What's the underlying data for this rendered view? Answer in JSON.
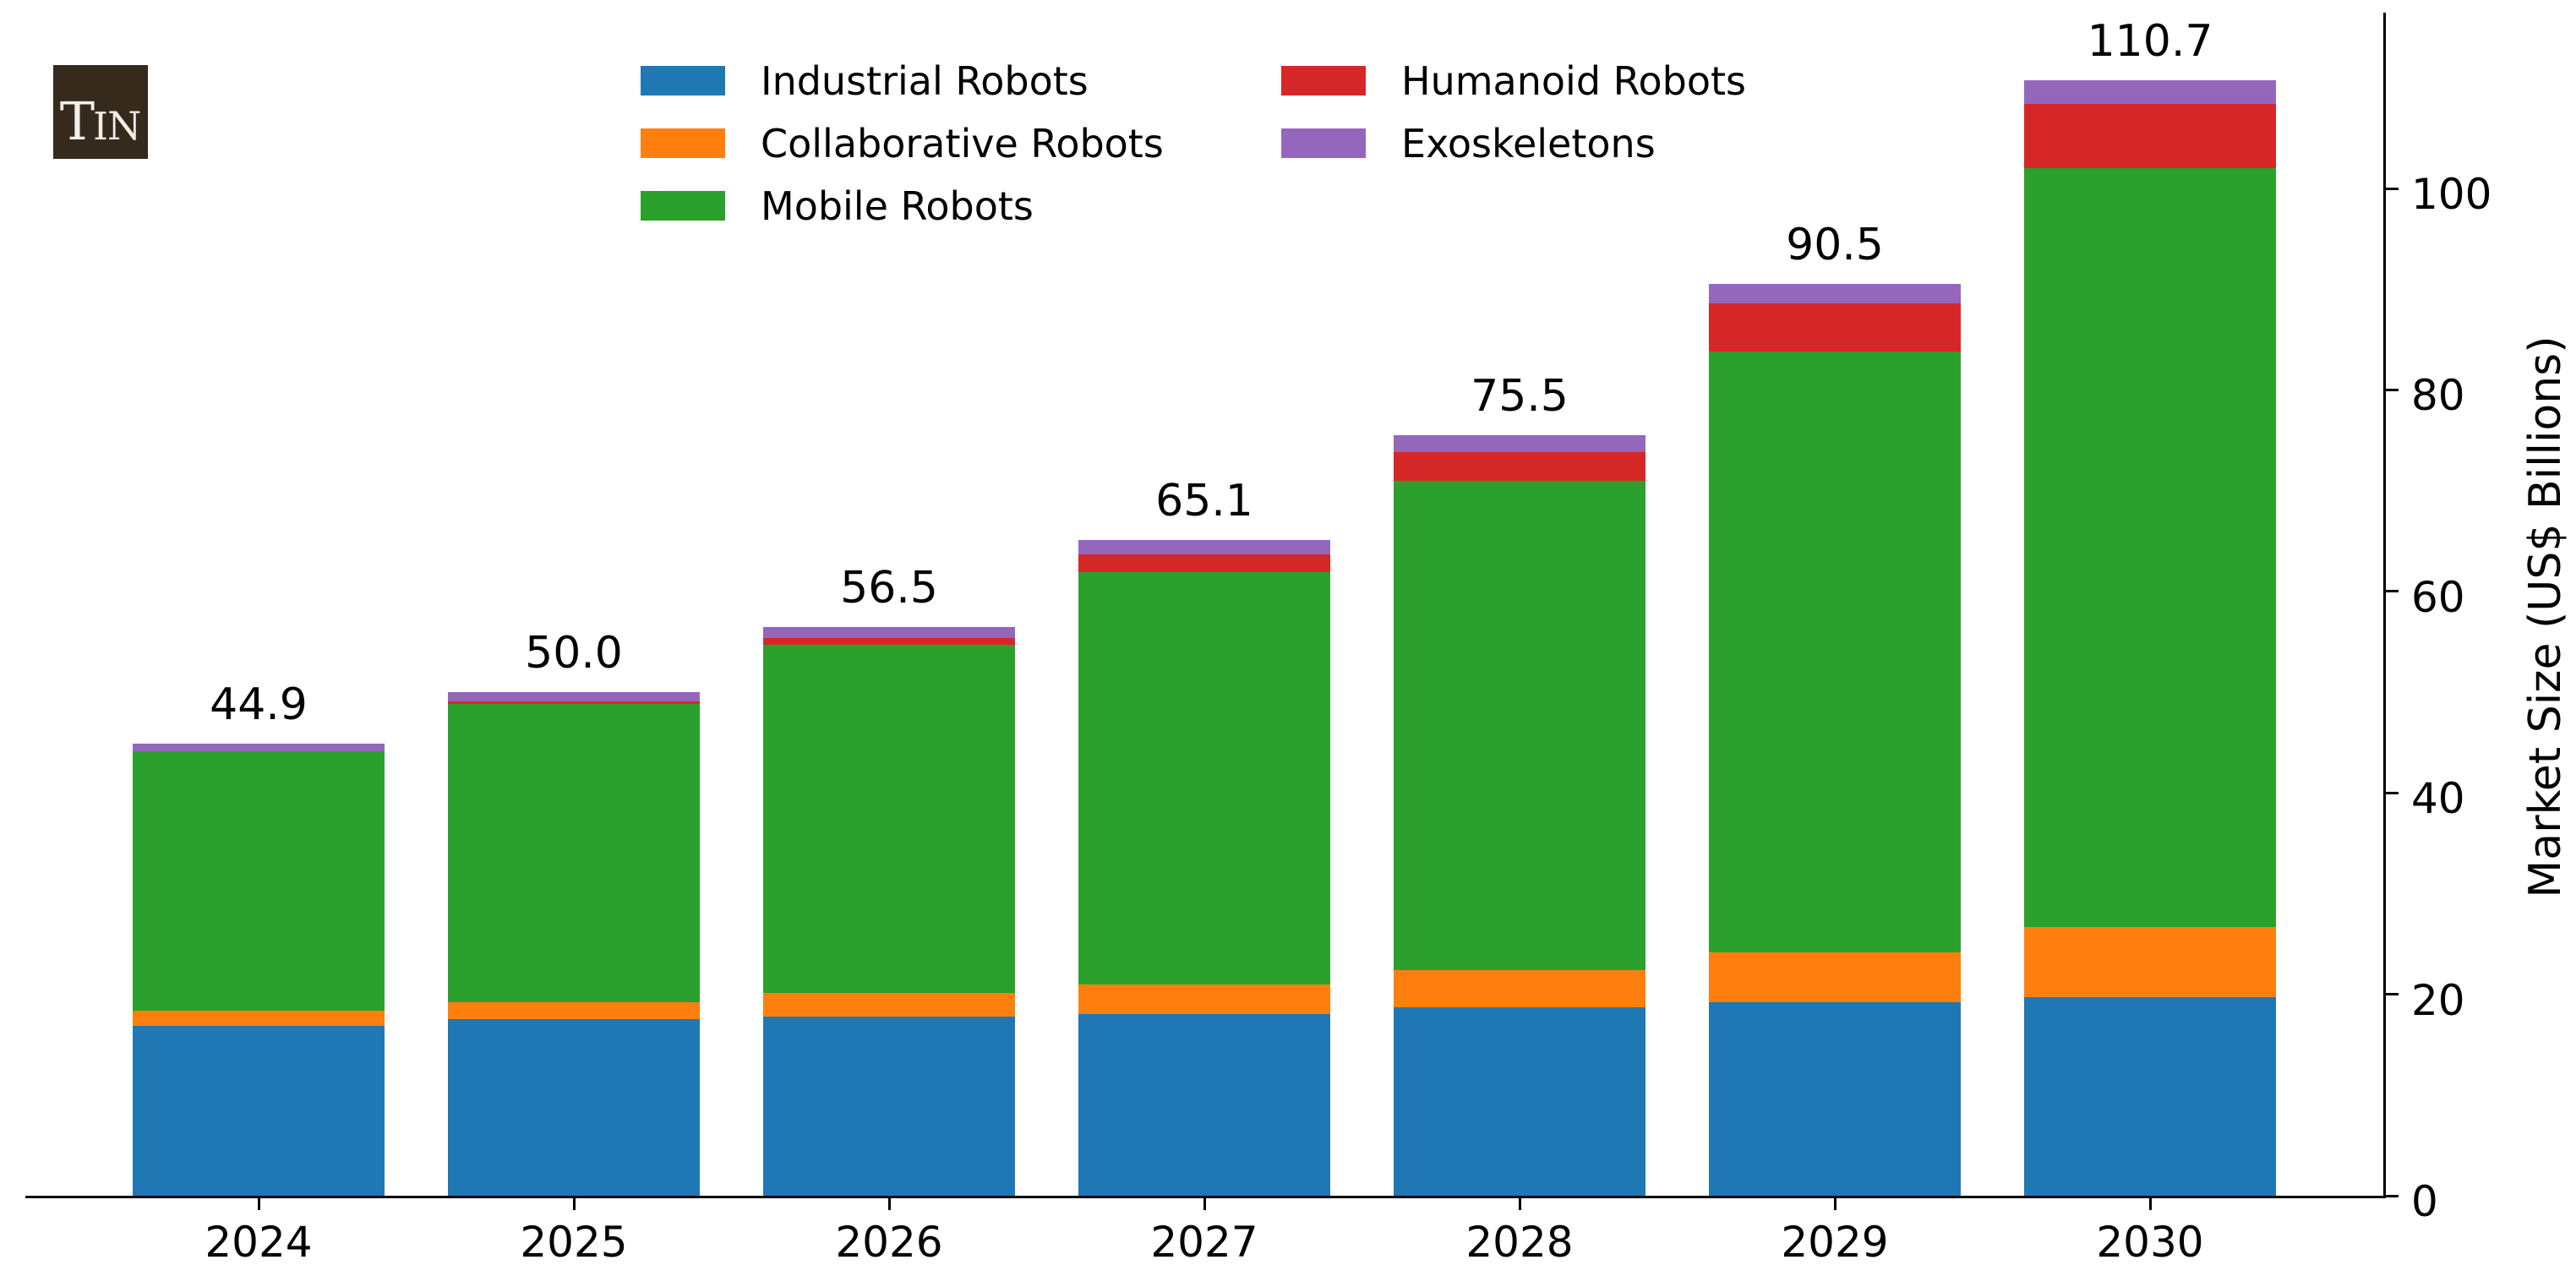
{
  "logo": {
    "letters": [
      "T",
      "I",
      "N"
    ]
  },
  "chart_data": {
    "type": "bar",
    "stacked": true,
    "categories": [
      "2024",
      "2025",
      "2026",
      "2027",
      "2028",
      "2029",
      "2030"
    ],
    "series": [
      {
        "name": "Industrial Robots",
        "color": "#1f77b4",
        "values": [
          16.9,
          17.5,
          17.8,
          18.0,
          18.7,
          19.2,
          19.7
        ]
      },
      {
        "name": "Collaborative Robots",
        "color": "#ff7f0e",
        "values": [
          1.5,
          1.7,
          2.3,
          3.0,
          3.7,
          5.0,
          7.0
        ]
      },
      {
        "name": "Mobile Robots",
        "color": "#2ca02c",
        "values": [
          25.7,
          29.6,
          34.6,
          40.9,
          48.6,
          59.6,
          75.3
        ]
      },
      {
        "name": "Humanoid Robots",
        "color": "#d62728",
        "values": [
          0.0,
          0.3,
          0.7,
          1.8,
          2.8,
          4.8,
          6.4
        ]
      },
      {
        "name": "Exoskeletons",
        "color": "#9467bd",
        "values": [
          0.8,
          0.9,
          1.1,
          1.4,
          1.7,
          1.9,
          2.3
        ]
      }
    ],
    "totals": [
      44.9,
      50.0,
      56.5,
      65.1,
      75.5,
      90.5,
      110.7
    ],
    "total_labels": [
      "44.9",
      "50.0",
      "56.5",
      "65.1",
      "75.5",
      "90.5",
      "110.7"
    ],
    "ylabel": "Market Size (US$ Billions)",
    "yticks": [
      0,
      20,
      40,
      60,
      80,
      100
    ],
    "ytick_labels": [
      "0",
      "20",
      "40",
      "60",
      "80",
      "100"
    ],
    "ylim": [
      0,
      117.5
    ],
    "grid": false,
    "legend_position": "upper-center-two-columns",
    "legend_columns": [
      [
        "Industrial Robots",
        "Collaborative Robots",
        "Mobile Robots"
      ],
      [
        "Humanoid Robots",
        "Exoskeletons"
      ]
    ]
  }
}
